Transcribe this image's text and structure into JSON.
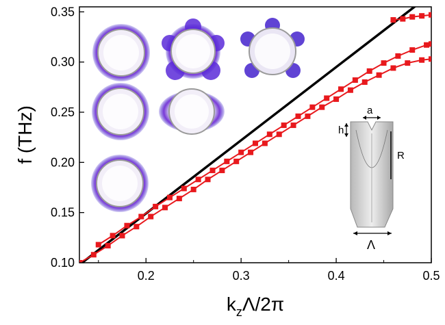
{
  "chart_data": {
    "type": "line",
    "x_axis": {
      "label_main": "k",
      "label_sub": "z",
      "label_rest": "Λ/2π",
      "range": [
        0.13,
        0.5
      ],
      "ticks": [
        0.2,
        0.3,
        0.4,
        0.5
      ],
      "tick_labels": [
        "0.2",
        "0.3",
        "0.4",
        "0.5"
      ]
    },
    "y_axis": {
      "label": "f (THz)",
      "range": [
        0.1,
        0.355
      ],
      "ticks": [
        0.1,
        0.15,
        0.2,
        0.25,
        0.3,
        0.35
      ],
      "tick_labels": [
        "0.10",
        "0.15",
        "0.20",
        "0.25",
        "0.30",
        "0.35"
      ]
    },
    "light_line": {
      "color": "#000000",
      "points": [
        [
          0.13,
          0.098
        ],
        [
          0.485,
          0.357
        ]
      ]
    },
    "series": [
      {
        "color": "#e8191d",
        "style": "line+square",
        "points": [
          [
            0.13,
            0.1
          ],
          [
            0.145,
            0.108
          ],
          [
            0.16,
            0.117
          ],
          [
            0.175,
            0.127
          ],
          [
            0.19,
            0.136
          ],
          [
            0.205,
            0.146
          ],
          [
            0.22,
            0.155
          ],
          [
            0.235,
            0.164
          ],
          [
            0.25,
            0.173
          ],
          [
            0.265,
            0.183
          ],
          [
            0.28,
            0.192
          ],
          [
            0.295,
            0.201
          ],
          [
            0.31,
            0.21
          ],
          [
            0.325,
            0.219
          ],
          [
            0.34,
            0.228
          ],
          [
            0.355,
            0.237
          ],
          [
            0.37,
            0.246
          ],
          [
            0.385,
            0.255
          ],
          [
            0.4,
            0.263
          ],
          [
            0.415,
            0.272
          ],
          [
            0.43,
            0.28
          ],
          [
            0.445,
            0.287
          ],
          [
            0.46,
            0.294
          ],
          [
            0.475,
            0.299
          ],
          [
            0.49,
            0.302
          ],
          [
            0.5,
            0.303
          ]
        ]
      },
      {
        "color": "#e8191d",
        "style": "line+square",
        "points": [
          [
            0.15,
            0.118
          ],
          [
            0.165,
            0.127
          ],
          [
            0.18,
            0.137
          ],
          [
            0.195,
            0.146
          ],
          [
            0.21,
            0.156
          ],
          [
            0.225,
            0.165
          ],
          [
            0.24,
            0.174
          ],
          [
            0.255,
            0.183
          ],
          [
            0.27,
            0.192
          ],
          [
            0.285,
            0.201
          ],
          [
            0.3,
            0.21
          ],
          [
            0.315,
            0.219
          ],
          [
            0.33,
            0.228
          ],
          [
            0.345,
            0.237
          ],
          [
            0.36,
            0.246
          ],
          [
            0.375,
            0.255
          ],
          [
            0.39,
            0.264
          ],
          [
            0.405,
            0.273
          ],
          [
            0.42,
            0.282
          ],
          [
            0.435,
            0.291
          ],
          [
            0.45,
            0.299
          ],
          [
            0.465,
            0.306
          ],
          [
            0.48,
            0.312
          ],
          [
            0.495,
            0.317
          ],
          [
            0.5,
            0.318
          ]
        ]
      },
      {
        "color": "#e8191d",
        "style": "line+square",
        "points": [
          [
            0.46,
            0.342
          ],
          [
            0.47,
            0.343
          ],
          [
            0.48,
            0.345
          ],
          [
            0.49,
            0.346
          ],
          [
            0.5,
            0.347
          ]
        ]
      }
    ],
    "insets": {
      "field_profiles": [
        {
          "mode": "circle-dipole",
          "col": 1,
          "row": 1
        },
        {
          "mode": "four-lobe",
          "col": 2,
          "row": 1
        },
        {
          "mode": "five-lobe",
          "col": 3,
          "row": 1
        },
        {
          "mode": "circle-dipole",
          "col": 1,
          "row": 2
        },
        {
          "mode": "circle-dipole",
          "col": 2,
          "row": 2
        },
        {
          "mode": "circle-dipole",
          "col": 1,
          "row": 3
        }
      ],
      "geometry_labels": {
        "a": "a",
        "h": "h",
        "R": "R",
        "period": "Λ"
      }
    }
  }
}
